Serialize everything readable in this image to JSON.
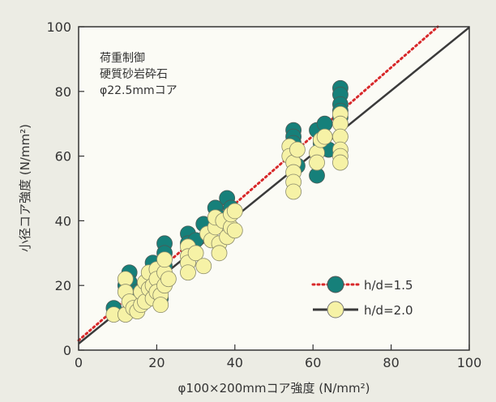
{
  "chart_data": {
    "type": "scatter",
    "title": "",
    "xlabel": "φ100×200mmコア強度 (N/mm²)",
    "ylabel": "小径コア強度 (N/mm²)",
    "xlim": [
      0,
      100
    ],
    "ylim": [
      0,
      100
    ],
    "x_ticks": [
      "0",
      "20",
      "40",
      "60",
      "80",
      "100"
    ],
    "y_ticks": [
      "0",
      "20",
      "40",
      "60",
      "80",
      "100"
    ],
    "grid": false,
    "annotation": [
      "荷重制御",
      "硬質砂岩砕石",
      "φ22.5mmコア"
    ],
    "legend_position": "bottom-right",
    "series": [
      {
        "name": "h/d=1.5",
        "marker_color": "#16807a",
        "line_color": "#d8282a",
        "line_style": "dotted",
        "fit": {
          "intercept": 3.0,
          "slope": 1.055
        },
        "points": [
          [
            9,
            13
          ],
          [
            12,
            20
          ],
          [
            13,
            24
          ],
          [
            13,
            21
          ],
          [
            14,
            17
          ],
          [
            15,
            18
          ],
          [
            17,
            16
          ],
          [
            18,
            22
          ],
          [
            19,
            27
          ],
          [
            19,
            24
          ],
          [
            20,
            21
          ],
          [
            21,
            16
          ],
          [
            21,
            19
          ],
          [
            22,
            33
          ],
          [
            22,
            30
          ],
          [
            22,
            26
          ],
          [
            22,
            22
          ],
          [
            28,
            36
          ],
          [
            28,
            33
          ],
          [
            30,
            34
          ],
          [
            32,
            39
          ],
          [
            35,
            44
          ],
          [
            36,
            41
          ],
          [
            38,
            47
          ],
          [
            39,
            44
          ],
          [
            55,
            68
          ],
          [
            55,
            66
          ],
          [
            55,
            64
          ],
          [
            55,
            61
          ],
          [
            56,
            57
          ],
          [
            61,
            68
          ],
          [
            61,
            54
          ],
          [
            62,
            64
          ],
          [
            63,
            70
          ],
          [
            64,
            62
          ],
          [
            67,
            81
          ],
          [
            67,
            79
          ],
          [
            67,
            76
          ],
          [
            67,
            74
          ],
          [
            67,
            72
          ]
        ]
      },
      {
        "name": "h/d=2.0",
        "marker_color": "#f6f2a6",
        "line_color": "#3a3a3a",
        "line_style": "solid",
        "fit": {
          "intercept": 2.0,
          "slope": 0.978
        },
        "points": [
          [
            9,
            11
          ],
          [
            12,
            22
          ],
          [
            12,
            18
          ],
          [
            12,
            11
          ],
          [
            13,
            15
          ],
          [
            14,
            13
          ],
          [
            15,
            12
          ],
          [
            16,
            14
          ],
          [
            16,
            18
          ],
          [
            17,
            15
          ],
          [
            17,
            21
          ],
          [
            18,
            24
          ],
          [
            18,
            19
          ],
          [
            19,
            16
          ],
          [
            19,
            20
          ],
          [
            20,
            25
          ],
          [
            20,
            22
          ],
          [
            20,
            18
          ],
          [
            21,
            17
          ],
          [
            21,
            14
          ],
          [
            22,
            20
          ],
          [
            22,
            24
          ],
          [
            22,
            28
          ],
          [
            23,
            22
          ],
          [
            28,
            32
          ],
          [
            28,
            29
          ],
          [
            28,
            27
          ],
          [
            28,
            24
          ],
          [
            30,
            30
          ],
          [
            32,
            26
          ],
          [
            33,
            36
          ],
          [
            34,
            34
          ],
          [
            35,
            38
          ],
          [
            35,
            41
          ],
          [
            36,
            33
          ],
          [
            36,
            30
          ],
          [
            37,
            40
          ],
          [
            38,
            35
          ],
          [
            39,
            38
          ],
          [
            39,
            42
          ],
          [
            40,
            37
          ],
          [
            40,
            43
          ],
          [
            54,
            63
          ],
          [
            54,
            60
          ],
          [
            55,
            58
          ],
          [
            55,
            55
          ],
          [
            55,
            52
          ],
          [
            55,
            49
          ],
          [
            56,
            62
          ],
          [
            61,
            61
          ],
          [
            61,
            58
          ],
          [
            62,
            65
          ],
          [
            63,
            66
          ],
          [
            67,
            73
          ],
          [
            67,
            70
          ],
          [
            67,
            66
          ],
          [
            67,
            62
          ],
          [
            67,
            60
          ],
          [
            67,
            58
          ]
        ]
      }
    ]
  }
}
